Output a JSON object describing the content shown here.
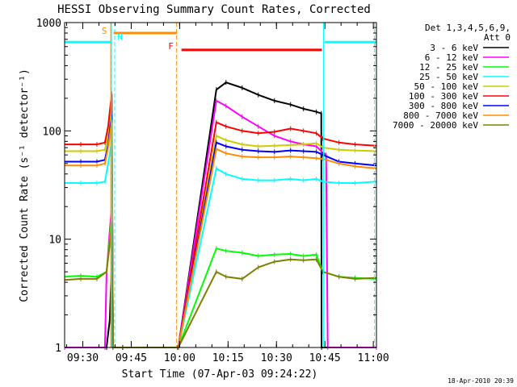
{
  "chart_data": {
    "type": "line",
    "title": "HESSI Observing Summary Count Rates, Corrected",
    "xlabel": "Start Time (07-Apr-03 09:24:22)",
    "ylabel": "Corrected Count Rate (s⁻¹ detector⁻¹)",
    "yscale": "log",
    "ylim": [
      1,
      1000
    ],
    "xlim_minutes": [
      0,
      96.6
    ],
    "x_ticks": [
      {
        "label": "09:30",
        "min": 5.63
      },
      {
        "label": "09:45",
        "min": 20.63
      },
      {
        "label": "10:00",
        "min": 35.63
      },
      {
        "label": "10:15",
        "min": 50.63
      },
      {
        "label": "10:30",
        "min": 65.63
      },
      {
        "label": "10:45",
        "min": 80.63
      },
      {
        "label": "11:00",
        "min": 95.63
      }
    ],
    "y_ticks": [
      {
        "label": "1",
        "value": 1
      },
      {
        "label": "10",
        "value": 10
      },
      {
        "label": "100",
        "value": 100
      },
      {
        "label": "1000",
        "value": 1000
      }
    ],
    "legend_header": [
      "Det 1,3,4,5,6,9,",
      "Att 0"
    ],
    "legend_position": "top-right",
    "series": [
      {
        "name": "3 - 6 keV",
        "color": "#000000",
        "points": [
          [
            0,
            1
          ],
          [
            13,
            1
          ],
          [
            14,
            1.8
          ],
          [
            14.6,
            6
          ],
          [
            15,
            1
          ],
          [
            18,
            1
          ],
          [
            35,
            1
          ],
          [
            35.2,
            1
          ],
          [
            47,
            240
          ],
          [
            50,
            280
          ],
          [
            55,
            250
          ],
          [
            60,
            215
          ],
          [
            65,
            190
          ],
          [
            70,
            175
          ],
          [
            74,
            160
          ],
          [
            78,
            150
          ],
          [
            79.5,
            145
          ],
          [
            79.6,
            1
          ],
          [
            96.6,
            1
          ]
        ]
      },
      {
        "name": "6 - 12 keV",
        "color": "#ff00ff",
        "points": [
          [
            0,
            1
          ],
          [
            12.5,
            1
          ],
          [
            13,
            4.8
          ],
          [
            14,
            12
          ],
          [
            14.6,
            20
          ],
          [
            15,
            1
          ],
          [
            35,
            1
          ],
          [
            35.2,
            1
          ],
          [
            47,
            190
          ],
          [
            50,
            170
          ],
          [
            55,
            135
          ],
          [
            60,
            110
          ],
          [
            65,
            90
          ],
          [
            70,
            80
          ],
          [
            74,
            75
          ],
          [
            78,
            72
          ],
          [
            79.5,
            65
          ],
          [
            81,
            60
          ],
          [
            81.5,
            1
          ],
          [
            96.6,
            1
          ]
        ]
      },
      {
        "name": "12 - 25 keV",
        "color": "#00ff00",
        "points": [
          [
            0,
            4.5
          ],
          [
            5,
            4.6
          ],
          [
            10,
            4.5
          ],
          [
            13,
            5
          ],
          [
            14,
            10
          ],
          [
            14.6,
            16
          ],
          [
            15,
            1
          ],
          [
            35,
            1
          ],
          [
            35.2,
            1
          ],
          [
            47,
            8.2
          ],
          [
            50,
            7.8
          ],
          [
            55,
            7.5
          ],
          [
            60,
            7
          ],
          [
            65,
            7.2
          ],
          [
            70,
            7.3
          ],
          [
            74,
            7
          ],
          [
            78,
            7.2
          ],
          [
            80,
            5
          ],
          [
            85,
            4.5
          ],
          [
            90,
            4.4
          ],
          [
            96.6,
            4.3
          ]
        ]
      },
      {
        "name": "25 - 50 keV",
        "color": "#00ffff",
        "points": [
          [
            0,
            33
          ],
          [
            5,
            33
          ],
          [
            10,
            33
          ],
          [
            12.5,
            34
          ],
          [
            13.5,
            50
          ],
          [
            14.6,
            80
          ],
          [
            15,
            1
          ],
          [
            35,
            1
          ],
          [
            35.2,
            1
          ],
          [
            47,
            45
          ],
          [
            50,
            40
          ],
          [
            55,
            36
          ],
          [
            60,
            35
          ],
          [
            65,
            35
          ],
          [
            70,
            36
          ],
          [
            74,
            35
          ],
          [
            78,
            36
          ],
          [
            80,
            34
          ],
          [
            85,
            33
          ],
          [
            90,
            33
          ],
          [
            96.6,
            34
          ]
        ]
      },
      {
        "name": "50 - 100 keV",
        "color": "#cccc00",
        "points": [
          [
            0,
            65
          ],
          [
            5,
            65
          ],
          [
            10,
            65
          ],
          [
            12.5,
            67
          ],
          [
            13.5,
            90
          ],
          [
            14.6,
            190
          ],
          [
            15,
            1
          ],
          [
            35,
            1
          ],
          [
            35.2,
            1
          ],
          [
            47,
            90
          ],
          [
            50,
            82
          ],
          [
            55,
            75
          ],
          [
            60,
            72
          ],
          [
            65,
            73
          ],
          [
            70,
            74
          ],
          [
            74,
            75
          ],
          [
            78,
            77
          ],
          [
            80,
            70
          ],
          [
            85,
            67
          ],
          [
            90,
            66
          ],
          [
            96.6,
            65
          ]
        ]
      },
      {
        "name": "100 - 300 keV",
        "color": "#ff0000",
        "points": [
          [
            0,
            75
          ],
          [
            5,
            75
          ],
          [
            10,
            75
          ],
          [
            12.5,
            78
          ],
          [
            13.5,
            110
          ],
          [
            14.6,
            220
          ],
          [
            15,
            1
          ],
          [
            35,
            1
          ],
          [
            35.2,
            1
          ],
          [
            47,
            120
          ],
          [
            50,
            110
          ],
          [
            55,
            100
          ],
          [
            60,
            95
          ],
          [
            65,
            98
          ],
          [
            70,
            105
          ],
          [
            74,
            100
          ],
          [
            78,
            95
          ],
          [
            80,
            85
          ],
          [
            85,
            78
          ],
          [
            90,
            75
          ],
          [
            96.6,
            73
          ]
        ]
      },
      {
        "name": "300 - 800 keV",
        "color": "#0000ff",
        "points": [
          [
            0,
            52
          ],
          [
            5,
            52
          ],
          [
            10,
            52
          ],
          [
            12.5,
            54
          ],
          [
            13.5,
            75
          ],
          [
            14.6,
            140
          ],
          [
            15,
            1
          ],
          [
            35,
            1
          ],
          [
            35.2,
            1
          ],
          [
            47,
            78
          ],
          [
            50,
            72
          ],
          [
            55,
            67
          ],
          [
            60,
            65
          ],
          [
            65,
            64
          ],
          [
            70,
            66
          ],
          [
            74,
            65
          ],
          [
            78,
            64
          ],
          [
            80,
            60
          ],
          [
            85,
            52
          ],
          [
            90,
            50
          ],
          [
            96.6,
            48
          ]
        ]
      },
      {
        "name": "800 - 7000 keV",
        "color": "#ff8c00",
        "points": [
          [
            0,
            48
          ],
          [
            5,
            48
          ],
          [
            10,
            48
          ],
          [
            12.5,
            50
          ],
          [
            13.5,
            70
          ],
          [
            14.6,
            120
          ],
          [
            15,
            1
          ],
          [
            35,
            1
          ],
          [
            35.2,
            1
          ],
          [
            47,
            68
          ],
          [
            50,
            62
          ],
          [
            55,
            58
          ],
          [
            60,
            57
          ],
          [
            65,
            57
          ],
          [
            70,
            58
          ],
          [
            74,
            57
          ],
          [
            78,
            56
          ],
          [
            80,
            55
          ],
          [
            85,
            50
          ],
          [
            90,
            47
          ],
          [
            96.6,
            45
          ]
        ]
      },
      {
        "name": "7000 - 20000 keV",
        "color": "#808000",
        "points": [
          [
            0,
            4.2
          ],
          [
            5,
            4.3
          ],
          [
            10,
            4.3
          ],
          [
            13,
            5
          ],
          [
            14,
            9
          ],
          [
            14.6,
            14
          ],
          [
            15,
            1
          ],
          [
            35,
            1
          ],
          [
            35.2,
            1
          ],
          [
            47,
            5
          ],
          [
            50,
            4.5
          ],
          [
            55,
            4.3
          ],
          [
            60,
            5.5
          ],
          [
            65,
            6.2
          ],
          [
            70,
            6.5
          ],
          [
            74,
            6.4
          ],
          [
            78,
            6.5
          ],
          [
            80,
            5
          ],
          [
            85,
            4.5
          ],
          [
            90,
            4.3
          ],
          [
            96.6,
            4.4
          ]
        ]
      }
    ],
    "annotations": [
      {
        "label": "S",
        "color": "#ff8c00",
        "min": 14.6
      },
      {
        "label": "N",
        "color": "#00ffff",
        "min": 15.3
      },
      {
        "label": "F",
        "color": "#ff0000",
        "min": 34.5
      }
    ],
    "flag_bars": [
      {
        "name": "saa-bar",
        "color": "#00ffff",
        "y": 660,
        "from": 0,
        "to": 14.4
      },
      {
        "name": "saa-bar",
        "color": "#00ffff",
        "y": 660,
        "from": 80.5,
        "to": 96.6
      },
      {
        "name": "attenuator-bar",
        "color": "#ff8c00",
        "y": 800,
        "from": 15.2,
        "to": 34.7
      },
      {
        "name": "flare-bar",
        "color": "#ff0000",
        "y": 560,
        "from": 36.2,
        "to": 79.7
      }
    ],
    "vlines": [
      {
        "name": "night-start-line",
        "color": "#00ffff",
        "min": 14.5,
        "dashed": false
      },
      {
        "name": "night-end-line",
        "color": "#00ffff",
        "min": 80.2,
        "dashed": false
      },
      {
        "name": "dashed-cyan-line",
        "color": "#00ffff",
        "min": 15.5,
        "dashed": true
      },
      {
        "name": "dashed-cyan-line",
        "color": "#00ffff",
        "min": 96.0,
        "dashed": true
      },
      {
        "name": "saa-start-line",
        "color": "#ff8c00",
        "min": 14.3,
        "dashed": false
      },
      {
        "name": "saa-end-line",
        "color": "#ff8c00",
        "min": 34.7,
        "dashed": true
      }
    ]
  },
  "footer": {
    "timestamp": "18-Apr-2010 20:39"
  }
}
